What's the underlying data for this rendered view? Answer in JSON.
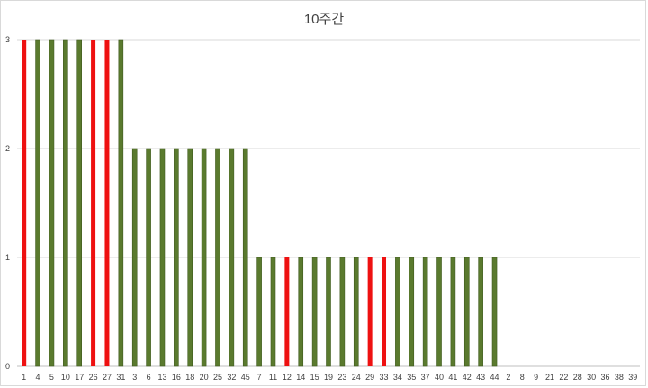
{
  "chart_data": {
    "type": "bar",
    "title": "10주간",
    "xlabel": "",
    "ylabel": "",
    "ylim": [
      0,
      3
    ],
    "yticks": [
      0,
      1,
      2,
      3
    ],
    "grid": true,
    "legend": "none",
    "categories": [
      "1",
      "4",
      "5",
      "10",
      "17",
      "26",
      "27",
      "31",
      "3",
      "6",
      "13",
      "16",
      "18",
      "20",
      "25",
      "32",
      "45",
      "7",
      "11",
      "12",
      "14",
      "15",
      "19",
      "23",
      "24",
      "29",
      "33",
      "34",
      "35",
      "37",
      "40",
      "41",
      "42",
      "43",
      "44",
      "2",
      "8",
      "9",
      "21",
      "22",
      "28",
      "30",
      "36",
      "38",
      "39"
    ],
    "values": [
      3,
      3,
      3,
      3,
      3,
      3,
      3,
      3,
      2,
      2,
      2,
      2,
      2,
      2,
      2,
      2,
      2,
      1,
      1,
      1,
      1,
      1,
      1,
      1,
      1,
      1,
      1,
      1,
      1,
      1,
      1,
      1,
      1,
      1,
      1,
      0,
      0,
      0,
      0,
      0,
      0,
      0,
      0,
      0,
      0
    ],
    "highlighted": [
      "1",
      "26",
      "27",
      "12",
      "29",
      "33"
    ],
    "colors": {
      "default": "#5a7a2e",
      "default_edge": "#3f5a1e",
      "highlight": "#ee1111",
      "grid": "#d9d9d9",
      "axis": "#bfbfbf"
    }
  }
}
